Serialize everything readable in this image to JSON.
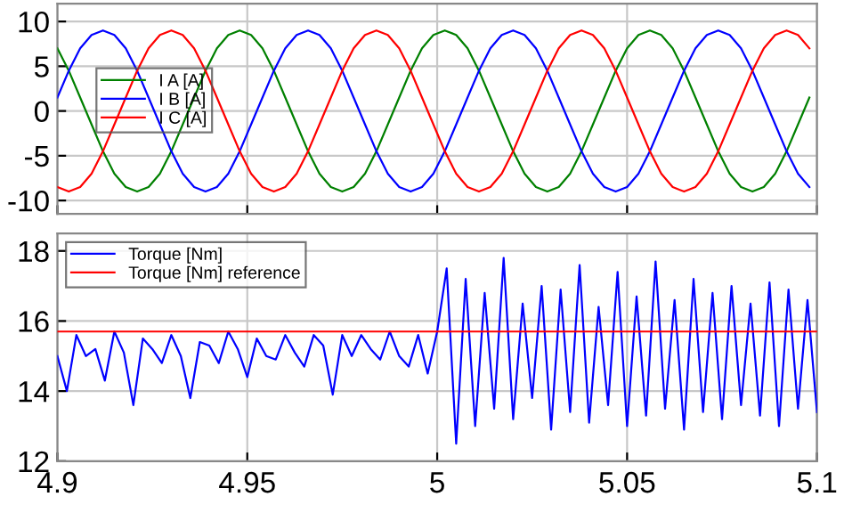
{
  "chart_data": [
    {
      "type": "line",
      "x": [
        4.9,
        4.903,
        4.906,
        4.909,
        4.912,
        4.915,
        4.918,
        4.921,
        4.924,
        4.927,
        4.93,
        4.933,
        4.936,
        4.939,
        4.942,
        4.945,
        4.948,
        4.951,
        4.954,
        4.957,
        4.96,
        4.963,
        4.966,
        4.969,
        4.972,
        4.975,
        4.978,
        4.981,
        4.984,
        4.987,
        4.99,
        4.993,
        4.996,
        4.999,
        5.002,
        5.005,
        5.008,
        5.011,
        5.014,
        5.017,
        5.02,
        5.023,
        5.026,
        5.029,
        5.032,
        5.035,
        5.038,
        5.041,
        5.044,
        5.047,
        5.05,
        5.053,
        5.056,
        5.059,
        5.062,
        5.065,
        5.068,
        5.071,
        5.074,
        5.077,
        5.08,
        5.083,
        5.086,
        5.089,
        5.092,
        5.095,
        5.098
      ],
      "series": [
        {
          "name": "I A [A]",
          "color": "#008000",
          "values": [
            7,
            4.5,
            1.5,
            -1.5,
            -4.5,
            -7,
            -8.5,
            -9,
            -8.5,
            -7,
            -4.5,
            -1.5,
            1.5,
            4.5,
            7,
            8.5,
            9,
            8.5,
            7,
            4.5,
            1.5,
            -1.5,
            -4.5,
            -7,
            -8.5,
            -9,
            -8.5,
            -7,
            -4.5,
            -1.5,
            1.5,
            4.5,
            7,
            8.5,
            9,
            8.5,
            7,
            4.5,
            1.5,
            -1.5,
            -4.5,
            -7,
            -8.5,
            -9,
            -8.5,
            -7,
            -4.5,
            -1.5,
            1.5,
            4.5,
            7,
            8.5,
            9,
            8.5,
            7,
            4.5,
            1.5,
            -1.5,
            -4.5,
            -7,
            -8.5,
            -9,
            -8.5,
            -7,
            -4.5,
            -1.5,
            1.5
          ]
        },
        {
          "name": "I B [A]",
          "color": "#0000ff",
          "values": [
            1.5,
            4.5,
            7,
            8.5,
            9,
            8.5,
            7,
            4.5,
            1.5,
            -1.5,
            -4.5,
            -7,
            -8.5,
            -9,
            -8.5,
            -7,
            -4.5,
            -1.5,
            1.5,
            4.5,
            7,
            8.5,
            9,
            8.5,
            7,
            4.5,
            1.5,
            -1.5,
            -4.5,
            -7,
            -8.5,
            -9,
            -8.5,
            -7,
            -4.5,
            -1.5,
            1.5,
            4.5,
            7,
            8.5,
            9,
            8.5,
            7,
            4.5,
            1.5,
            -1.5,
            -4.5,
            -7,
            -8.5,
            -9,
            -8.5,
            -7,
            -4.5,
            -1.5,
            1.5,
            4.5,
            7,
            8.5,
            9,
            8.5,
            7,
            4.5,
            1.5,
            -1.5,
            -4.5,
            -7,
            -8.5
          ]
        },
        {
          "name": "I C [A]",
          "color": "#ff0000",
          "values": [
            -8.5,
            -9,
            -8.5,
            -7,
            -4.5,
            -1.5,
            1.5,
            4.5,
            7,
            8.5,
            9,
            8.5,
            7,
            4.5,
            1.5,
            -1.5,
            -4.5,
            -7,
            -8.5,
            -9,
            -8.5,
            -7,
            -4.5,
            -1.5,
            1.5,
            4.5,
            7,
            8.5,
            9,
            8.5,
            7,
            4.5,
            1.5,
            -1.5,
            -4.5,
            -7,
            -8.5,
            -9,
            -8.5,
            -7,
            -4.5,
            -1.5,
            1.5,
            4.5,
            7,
            8.5,
            9,
            8.5,
            7,
            4.5,
            1.5,
            -1.5,
            -4.5,
            -7,
            -8.5,
            -9,
            -8.5,
            -7,
            -4.5,
            -1.5,
            1.5,
            4.5,
            7,
            8.5,
            9,
            8.5,
            7
          ]
        }
      ],
      "xlim": [
        4.9,
        5.1
      ],
      "xticks": [
        4.9,
        4.95,
        5,
        5.05,
        5.1
      ],
      "ylim": [
        -11.5,
        12
      ],
      "yticks": [
        -10,
        -5,
        0,
        5,
        10
      ],
      "grid": true,
      "legend": "left",
      "tick_labels": "y"
    },
    {
      "type": "line",
      "series": [
        {
          "name": "Torque [Nm]",
          "color": "#0000ff",
          "x": [
            4.9,
            4.9025,
            4.905,
            4.9075,
            4.91,
            4.9125,
            4.915,
            4.9175,
            4.92,
            4.9225,
            4.925,
            4.9275,
            4.93,
            4.9325,
            4.935,
            4.9375,
            4.94,
            4.9425,
            4.945,
            4.9475,
            4.95,
            4.9525,
            4.955,
            4.9575,
            4.96,
            4.9625,
            4.965,
            4.9675,
            4.97,
            4.9725,
            4.975,
            4.9775,
            4.98,
            4.9825,
            4.985,
            4.9875,
            4.99,
            4.9925,
            4.995,
            4.9975,
            5.0,
            5.0025,
            5.005,
            5.0075,
            5.01,
            5.0125,
            5.015,
            5.0175,
            5.02,
            5.0225,
            5.025,
            5.0275,
            5.03,
            5.0325,
            5.035,
            5.0375,
            5.04,
            5.0425,
            5.045,
            5.0475,
            5.05,
            5.0525,
            5.055,
            5.0575,
            5.06,
            5.0625,
            5.065,
            5.0675,
            5.07,
            5.0725,
            5.075,
            5.0775,
            5.08,
            5.0825,
            5.085,
            5.0875,
            5.09,
            5.0925,
            5.095,
            5.0975,
            5.1
          ],
          "values": [
            15.0,
            14.0,
            15.6,
            15.0,
            15.2,
            14.3,
            15.7,
            15.1,
            13.6,
            15.5,
            15.2,
            14.8,
            15.6,
            15.0,
            13.8,
            15.4,
            15.3,
            14.8,
            15.7,
            15.2,
            14.4,
            15.5,
            15.0,
            14.9,
            15.6,
            15.1,
            14.7,
            15.6,
            15.3,
            13.9,
            15.6,
            15.0,
            15.6,
            15.2,
            14.9,
            15.7,
            15.0,
            14.7,
            15.6,
            14.5,
            15.7,
            17.5,
            12.5,
            17.2,
            13.0,
            16.8,
            13.5,
            17.8,
            13.2,
            16.5,
            13.8,
            17.0,
            12.9,
            16.9,
            13.4,
            17.6,
            13.1,
            16.4,
            13.6,
            17.4,
            13.0,
            16.7,
            13.3,
            17.7,
            13.5,
            16.6,
            12.9,
            17.2,
            13.4,
            16.8,
            13.2,
            17.0,
            13.6,
            16.5,
            13.3,
            17.1,
            13.0,
            16.9,
            13.5,
            16.6,
            13.4
          ]
        },
        {
          "name": "Torque [Nm] reference",
          "color": "#ff0000",
          "x": [
            4.9,
            5.1
          ],
          "values": [
            15.7,
            15.7
          ]
        }
      ],
      "xlim": [
        4.9,
        5.1
      ],
      "xticks": [
        4.9,
        4.95,
        5,
        5.05,
        5.1
      ],
      "ylim": [
        12,
        18.5
      ],
      "yticks": [
        12,
        14,
        16,
        18
      ],
      "grid": true,
      "legend": "top left"
    }
  ]
}
